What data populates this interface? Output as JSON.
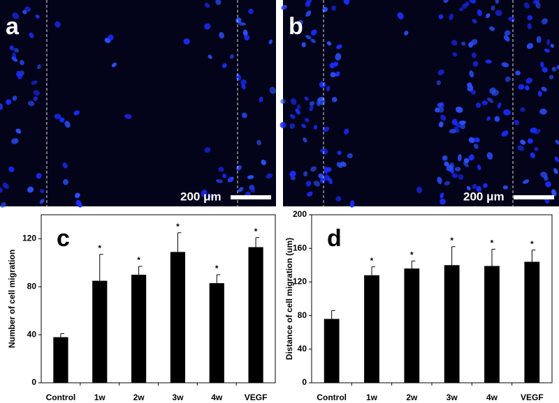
{
  "images": [
    {
      "label": "a",
      "scale_bar": "200 μm"
    },
    {
      "label": "b",
      "scale_bar": "200 μm"
    }
  ],
  "chart_data": [
    {
      "type": "bar",
      "panel_label": "c",
      "y_label": "Number of cell migration",
      "categories": [
        "Control",
        "1w",
        "2w",
        "3w",
        "4w",
        "VEGF"
      ],
      "values": [
        38,
        85,
        90,
        109,
        83,
        113
      ],
      "errors": [
        3,
        22,
        7,
        16,
        7,
        8
      ],
      "markers": [
        null,
        "*",
        "*",
        "*",
        "*",
        "*"
      ],
      "color": "#000000",
      "ylim": [
        0,
        140
      ],
      "yticks": [
        0,
        40,
        80,
        120
      ]
    },
    {
      "type": "bar",
      "panel_label": "d",
      "y_label": "Distance of cell migration (um)",
      "categories": [
        "Control",
        "1w",
        "2w",
        "3w",
        "4w",
        "VEGF"
      ],
      "values": [
        76,
        128,
        136,
        140,
        139,
        144
      ],
      "errors": [
        10,
        10,
        9,
        22,
        20,
        14
      ],
      "markers": [
        null,
        "*",
        "*",
        "*",
        "*",
        "*"
      ],
      "color": "#000000",
      "ylim": [
        0,
        200
      ],
      "yticks": [
        0,
        40,
        80,
        120,
        160,
        200
      ]
    }
  ]
}
